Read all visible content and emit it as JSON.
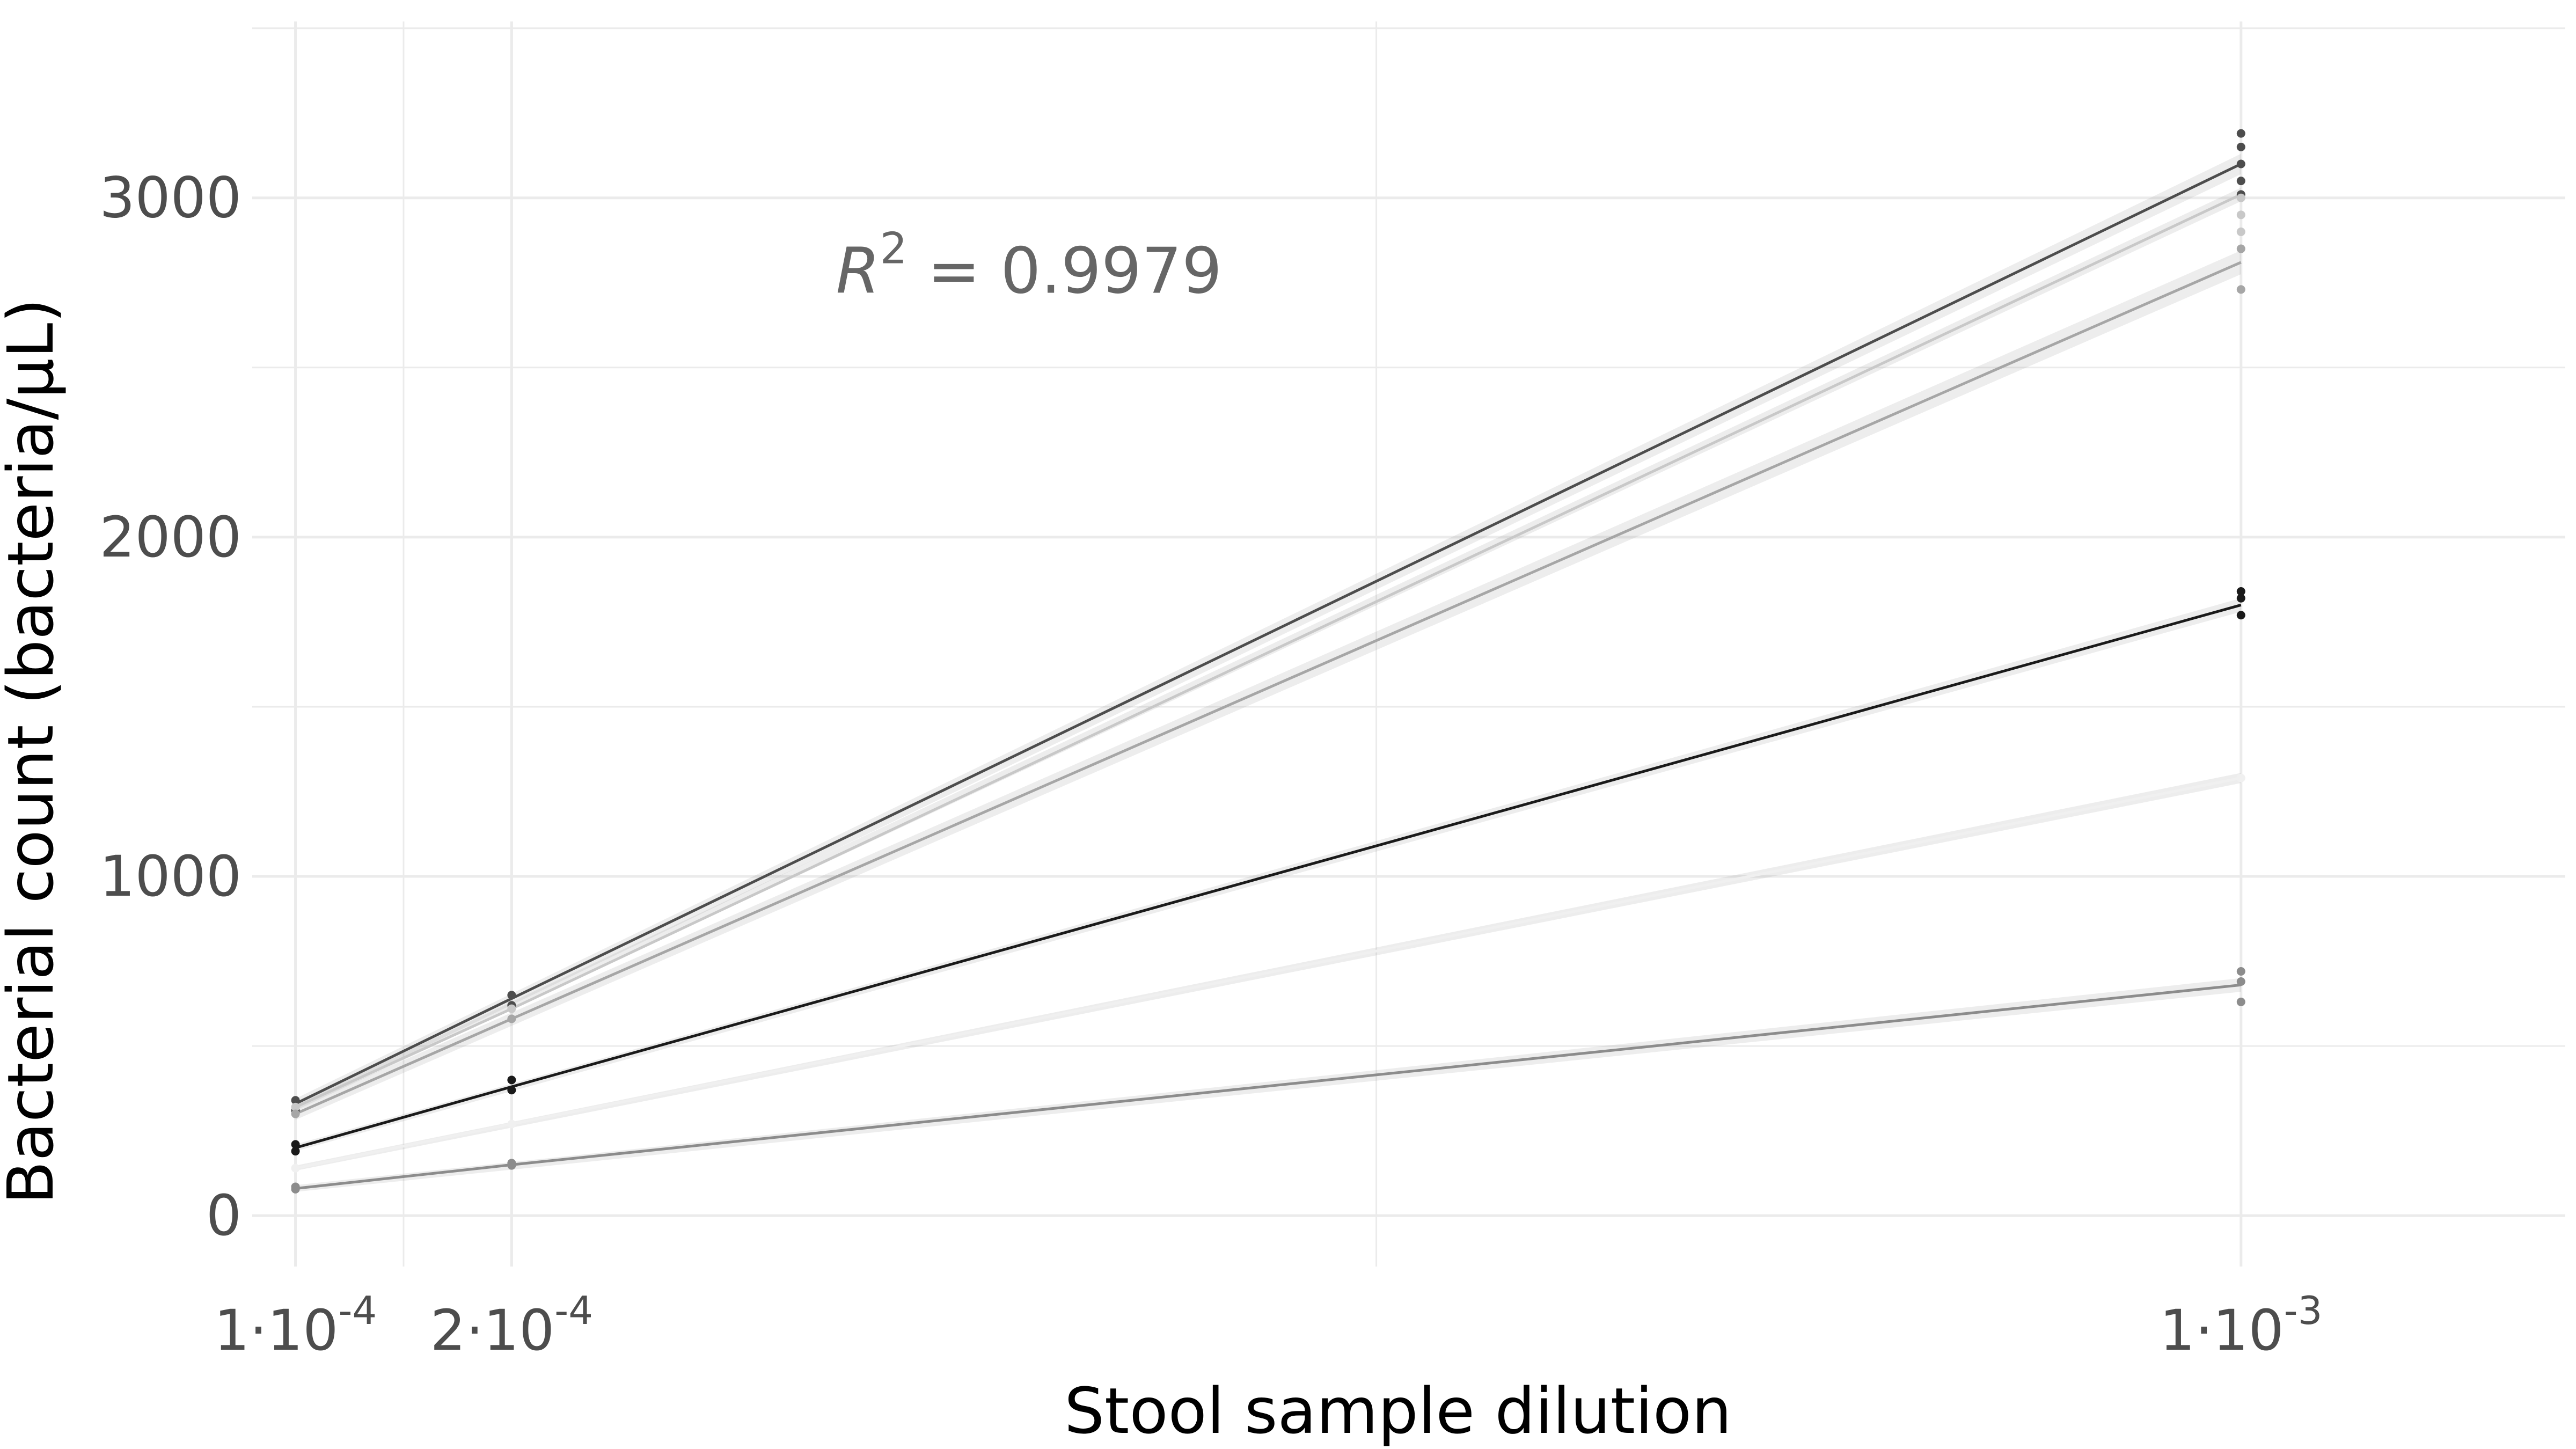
{
  "chart_data": {
    "type": "line",
    "title": "",
    "xlabel": "Stool sample dilution",
    "ylabel": "Bacterial count (bacteria/µL)",
    "x": [
      0.0001,
      0.0002,
      0.001
    ],
    "xlim": [
      8e-05,
      0.00115
    ],
    "ylim": [
      -150,
      3520
    ],
    "x_scale": "linear",
    "grid": true,
    "x_ticks": [
      {
        "value": 0.0001,
        "mantissa": "1",
        "exponent": "-4"
      },
      {
        "value": 0.0002,
        "mantissa": "2",
        "exponent": "-4"
      },
      {
        "value": 0.001,
        "mantissa": "1",
        "exponent": "-3"
      }
    ],
    "x_minor_gridlines": [
      0.00015,
      0.0006
    ],
    "y_ticks": [
      0,
      1000,
      2000,
      3000
    ],
    "y_minor_gridlines": [
      500,
      1500,
      2500,
      3500
    ],
    "annotation": {
      "base": "R",
      "sup": "2",
      "rest": " = 0.9979",
      "x": 0.00035,
      "y": 2720
    },
    "series": [
      {
        "values": [
          330,
          640,
          3100
        ],
        "color": "#4d4d4d",
        "band": 30,
        "points": [
          [
            0.0001,
            340
          ],
          [
            0.0001,
            310
          ],
          [
            0.0002,
            650
          ],
          [
            0.0002,
            620
          ],
          [
            0.001,
            3190
          ],
          [
            0.001,
            3150
          ],
          [
            0.001,
            3100
          ],
          [
            0.001,
            3050
          ],
          [
            0.001,
            3010
          ]
        ]
      },
      {
        "values": [
          320,
          610,
          3010
        ],
        "color": "#c8c8c8",
        "band": 20,
        "points": [
          [
            0.0001,
            320
          ],
          [
            0.0002,
            610
          ],
          [
            0.001,
            2950
          ],
          [
            0.001,
            2900
          ],
          [
            0.001,
            3000
          ]
        ]
      },
      {
        "values": [
          300,
          580,
          2810
        ],
        "color": "#a6a6a6",
        "band": 35,
        "points": [
          [
            0.0001,
            300
          ],
          [
            0.0002,
            580
          ],
          [
            0.001,
            2850
          ],
          [
            0.001,
            2730
          ]
        ]
      },
      {
        "values": [
          200,
          380,
          1800
        ],
        "color": "#1a1a1a",
        "band": 20,
        "points": [
          [
            0.0001,
            210
          ],
          [
            0.0001,
            190
          ],
          [
            0.0002,
            400
          ],
          [
            0.0002,
            370
          ],
          [
            0.001,
            1840
          ],
          [
            0.001,
            1820
          ],
          [
            0.001,
            1770
          ]
        ]
      },
      {
        "values": [
          140,
          270,
          1290
        ],
        "color": "#f0f0f0",
        "band": 15,
        "points": [
          [
            0.0001,
            140
          ],
          [
            0.0002,
            270
          ],
          [
            0.001,
            1290
          ]
        ]
      },
      {
        "values": [
          80,
          150,
          680
        ],
        "color": "#8c8c8c",
        "band": 20,
        "points": [
          [
            0.0001,
            85
          ],
          [
            0.0001,
            78
          ],
          [
            0.0002,
            155
          ],
          [
            0.0002,
            148
          ],
          [
            0.001,
            720
          ],
          [
            0.001,
            690
          ],
          [
            0.001,
            630
          ]
        ]
      }
    ],
    "colors": {
      "grid": "#ebebeb",
      "tick_text": "#4d4d4d",
      "title_text": "#000000",
      "annotation": "#666666"
    }
  }
}
